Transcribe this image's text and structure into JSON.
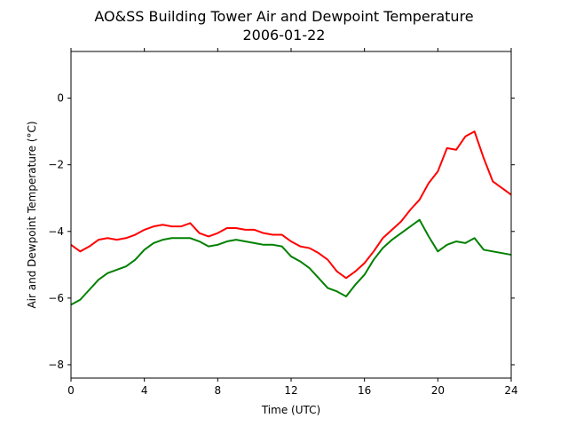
{
  "chart_data": {
    "type": "line",
    "title": "AO&SS Building Tower Air and Dewpoint Temperature",
    "subtitle": "2006-01-22",
    "xlabel": "Time (UTC)",
    "ylabel": "Air and Dewpoint Temperature (°C)",
    "xlim": [
      0,
      24
    ],
    "ylim": [
      -8.4,
      1.4
    ],
    "xticks": [
      0,
      4,
      8,
      12,
      16,
      20,
      24
    ],
    "yticks": [
      -8,
      -6,
      -4,
      -2,
      0
    ],
    "grid": false,
    "legend": "none",
    "series": [
      {
        "color": "#ff0000",
        "x": [
          0,
          0.5,
          1,
          1.5,
          2,
          2.5,
          3,
          3.5,
          4,
          4.5,
          5,
          5.5,
          6,
          6.5,
          7,
          7.5,
          8,
          8.5,
          9,
          9.5,
          10,
          10.5,
          11,
          11.5,
          12,
          12.5,
          13,
          13.5,
          14,
          14.5,
          15,
          15.5,
          16,
          16.5,
          17,
          17.5,
          18,
          18.5,
          19,
          19.5,
          20,
          20.5,
          21,
          21.5,
          22,
          22.5,
          23,
          23.5,
          24
        ],
        "values": [
          -4.4,
          -4.6,
          -4.45,
          -4.25,
          -4.2,
          -4.25,
          -4.2,
          -4.1,
          -3.95,
          -3.85,
          -3.8,
          -3.85,
          -3.85,
          -3.75,
          -4.05,
          -4.15,
          -4.05,
          -3.9,
          -3.9,
          -3.95,
          -3.95,
          -4.05,
          -4.1,
          -4.1,
          -4.3,
          -4.45,
          -4.5,
          -4.65,
          -4.85,
          -5.2,
          -5.4,
          -5.2,
          -4.95,
          -4.6,
          -4.2,
          -3.95,
          -3.7,
          -3.35,
          -3.05,
          -2.55,
          -2.2,
          -1.5,
          -1.55,
          -1.15,
          -1.0,
          -1.8,
          -2.5,
          -2.7,
          -2.9
        ]
      },
      {
        "color": "#008000",
        "x": [
          0,
          0.5,
          1,
          1.5,
          2,
          2.5,
          3,
          3.5,
          4,
          4.5,
          5,
          5.5,
          6,
          6.5,
          7,
          7.5,
          8,
          8.5,
          9,
          9.5,
          10,
          10.5,
          11,
          11.5,
          12,
          12.5,
          13,
          13.5,
          14,
          14.5,
          15,
          15.5,
          16,
          16.5,
          17,
          17.5,
          18,
          18.5,
          19,
          19.5,
          20,
          20.5,
          21,
          21.5,
          22,
          22.5,
          23,
          23.5,
          24
        ],
        "values": [
          -6.2,
          -6.05,
          -5.75,
          -5.45,
          -5.25,
          -5.15,
          -5.05,
          -4.85,
          -4.55,
          -4.35,
          -4.25,
          -4.2,
          -4.2,
          -4.2,
          -4.3,
          -4.45,
          -4.4,
          -4.3,
          -4.25,
          -4.3,
          -4.35,
          -4.4,
          -4.4,
          -4.45,
          -4.75,
          -4.9,
          -5.1,
          -5.4,
          -5.7,
          -5.8,
          -5.95,
          -5.6,
          -5.3,
          -4.85,
          -4.5,
          -4.25,
          -4.05,
          -3.85,
          -3.65,
          -4.15,
          -4.6,
          -4.4,
          -4.3,
          -4.35,
          -4.2,
          -4.55,
          -4.6,
          -4.65,
          -4.7
        ]
      }
    ]
  }
}
